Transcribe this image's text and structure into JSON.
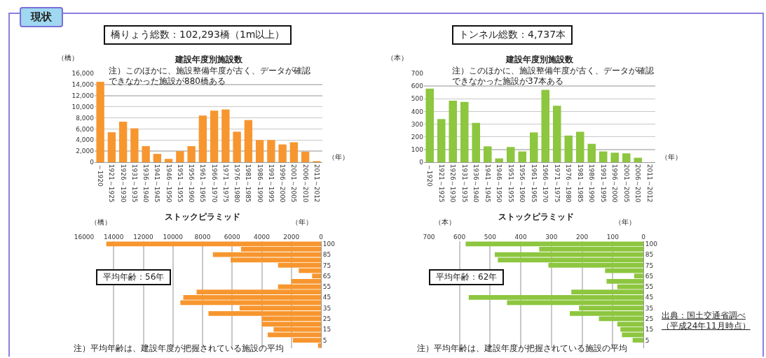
{
  "chart_data": [
    {
      "type": "bar",
      "title": "建設年度別施設数",
      "ylabel": "（橋）",
      "xlabel": "（年）",
      "annotations": [
        "現状",
        "橋りょう総数：102,293橋（1m以上）",
        "注）このほかに、施設整備年度が古く、データが確認できなかった施設が880橋ある"
      ],
      "categories": [
        "～1920",
        "1921～1925",
        "1926～1930",
        "1931～1935",
        "1936～1940",
        "1941～1945",
        "1946～1950",
        "1951～1955",
        "1956～1960",
        "1961～1965",
        "1966～1970",
        "1971～1975",
        "1976～1980",
        "1981～1985",
        "1986～1990",
        "1991～1995",
        "1996～2000",
        "2001～2005",
        "2006～2010",
        "2011～2012"
      ],
      "values": [
        14500,
        5400,
        7300,
        6100,
        2900,
        1500,
        600,
        2000,
        2900,
        8400,
        9300,
        9500,
        5500,
        7600,
        4000,
        4000,
        3200,
        3600,
        1900,
        200
      ],
      "color": "#f7962f",
      "ylim": [
        0,
        16000
      ],
      "yticks": [
        0,
        {
          "value": 2000,
          "label": "2,000"
        },
        {
          "value": 4000,
          "label": "4,000"
        },
        {
          "value": 6000,
          "label": "6,000"
        },
        {
          "value": 8000,
          "label": "8,000"
        },
        {
          "value": 10000,
          "label": "10,000"
        },
        {
          "value": 12000,
          "label": "12,000"
        },
        {
          "value": 14000,
          "label": "14,000"
        },
        {
          "value": 16000,
          "label": "16,000"
        }
      ],
      "grid": "y"
    },
    {
      "type": "bar",
      "title": "建設年度別施設数",
      "ylabel": "（本）",
      "xlabel": "（年）",
      "annotations": [
        "トンネル総数：4,737本",
        "注）このほかに、施設整備年度が古く、データが確認できなかった施設が37本ある"
      ],
      "categories": [
        "～1920",
        "1921～1925",
        "1926～1930",
        "1931～1935",
        "1936～1940",
        "1941～1945",
        "1946～1950",
        "1951～1955",
        "1956～1960",
        "1961～1965",
        "1966～1970",
        "1971～1975",
        "1976～1980",
        "1981～1985",
        "1986～1990",
        "1991～1995",
        "1996～2000",
        "2001～2005",
        "2006～2010",
        "2011～2012"
      ],
      "values": [
        580,
        340,
        485,
        475,
        310,
        125,
        30,
        120,
        85,
        235,
        570,
        445,
        210,
        240,
        145,
        85,
        75,
        70,
        35,
        0
      ],
      "color": "#8dc63f",
      "ylim": [
        0,
        700
      ],
      "yticks": [
        0,
        100,
        200,
        300,
        400,
        500,
        600,
        700
      ],
      "grid": "y"
    },
    {
      "type": "bar",
      "orientation": "horizontal",
      "title": "ストックピラミッド",
      "xlabel": "（橋）",
      "ylabel": "（年）",
      "annotations": [
        "平均年齢：56年",
        "注）平均年齢は、建設年度が把握されている施設の平均"
      ],
      "categories": [
        "100",
        null,
        "85",
        null,
        "75",
        null,
        "65",
        null,
        "55",
        null,
        "45",
        null,
        "35",
        null,
        "25",
        null,
        "15",
        null,
        "5",
        null
      ],
      "values": [
        14500,
        5400,
        7300,
        6100,
        2900,
        1500,
        600,
        2000,
        2900,
        8400,
        9300,
        9500,
        5500,
        7600,
        4000,
        4000,
        3200,
        3600,
        1900,
        200
      ],
      "color": "#f7962f",
      "xlim": [
        16000,
        0
      ],
      "xticks": [
        0,
        2000,
        4000,
        6000,
        8000,
        10000,
        12000,
        14000,
        16000
      ],
      "grid": "x"
    },
    {
      "type": "bar",
      "orientation": "horizontal",
      "title": "ストックピラミッド",
      "xlabel": "（本）",
      "ylabel": "（年）",
      "annotations": [
        "平均年齢：62年",
        "注）平均年齢は、建設年度が把握されている施設の平均",
        "出典：国土交通省調べ（平成24年11月時点）"
      ],
      "categories": [
        "100",
        null,
        "85",
        null,
        "75",
        null,
        "65",
        null,
        "55",
        null,
        "45",
        null,
        "35",
        null,
        "25",
        null,
        "15",
        null,
        "5",
        null
      ],
      "values": [
        580,
        340,
        485,
        475,
        310,
        125,
        30,
        120,
        85,
        235,
        570,
        445,
        210,
        240,
        145,
        85,
        75,
        70,
        35,
        0
      ],
      "color": "#8dc63f",
      "xlim": [
        700,
        0
      ],
      "xticks": [
        0,
        100,
        200,
        300,
        400,
        500,
        600,
        700
      ],
      "grid": "x"
    }
  ]
}
